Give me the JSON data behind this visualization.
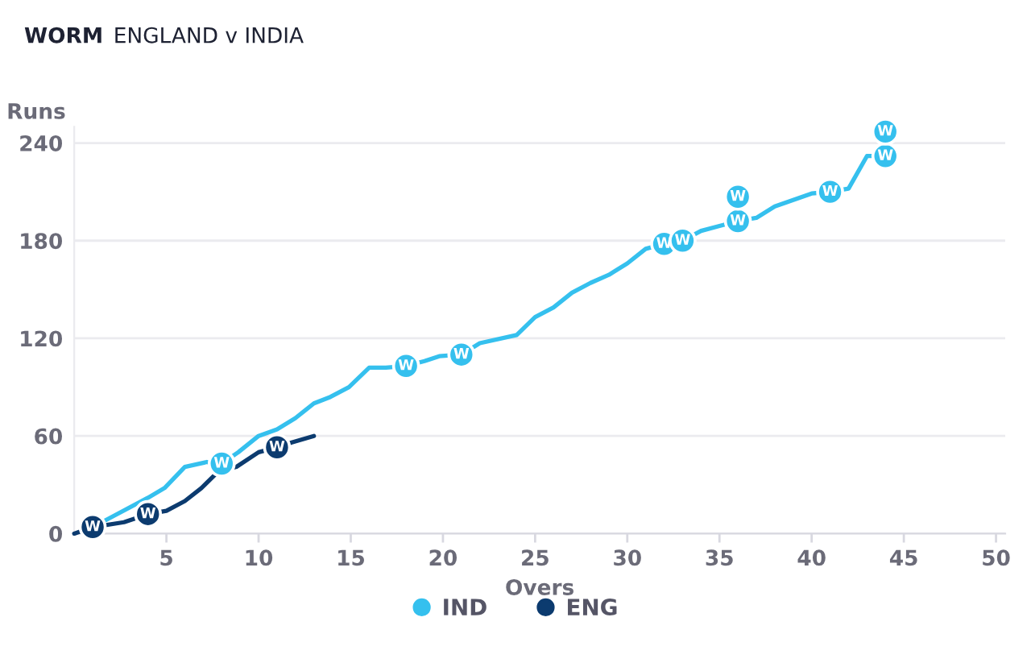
{
  "chart_data": {
    "type": "line",
    "title": "WORM",
    "subtitle": "ENGLAND v INDIA",
    "xlabel": "Overs",
    "ylabel": "Runs",
    "xlim": [
      0,
      50.5
    ],
    "xticks": [
      5,
      10,
      15,
      20,
      25,
      30,
      35,
      40,
      45,
      50
    ],
    "ylim": [
      0,
      250
    ],
    "yticks": [
      0,
      60,
      120,
      180,
      240
    ],
    "grid": "y",
    "legend": "bottom",
    "marker": "none",
    "series": [
      {
        "name": "IND",
        "color": "#35c0ee",
        "x": [
          1,
          1.5,
          4,
          4.9,
          6,
          7.2,
          8,
          8.9,
          10,
          11,
          12,
          13,
          13.9,
          14.9,
          16,
          16.9,
          18,
          19,
          19.8,
          21,
          22,
          24,
          25,
          26,
          27,
          28,
          29,
          30,
          31,
          32,
          33,
          34,
          35,
          36,
          37,
          38,
          39,
          40,
          41,
          42,
          43,
          44
        ],
        "values": [
          4,
          7,
          22,
          28,
          41,
          44,
          43,
          50,
          60,
          64,
          71,
          80,
          84,
          90,
          102,
          102,
          103,
          106,
          109,
          110,
          117,
          122,
          133,
          139,
          148,
          154,
          159,
          166,
          175,
          178,
          180,
          186,
          189,
          192,
          194,
          201,
          205,
          209,
          210,
          212,
          232,
          232
        ]
      },
      {
        "name": "ENG",
        "color": "#0c3b6f",
        "x": [
          0,
          1,
          2.7,
          4,
          5,
          6,
          6.9,
          7.8,
          8.8,
          10,
          11,
          11.8,
          13
        ],
        "values": [
          0,
          4,
          7,
          12,
          14,
          20,
          28,
          38,
          41,
          50,
          53,
          56,
          60
        ]
      },
      {
        "type": "scatter",
        "marker": "circle",
        "color": "#35c0ee",
        "x": [
          8,
          18,
          21,
          32,
          33,
          36,
          36,
          41,
          44,
          44
        ],
        "values": [
          43,
          103,
          110,
          178,
          180,
          192,
          207,
          210,
          232,
          247
        ],
        "value_labels": [
          "W",
          "W",
          "W",
          "W",
          "W",
          "W",
          "W",
          "W",
          "W",
          "W"
        ]
      },
      {
        "type": "scatter",
        "marker": "circle",
        "color": "#0c3b6f",
        "x": [
          1,
          4,
          11
        ],
        "values": [
          4,
          12,
          53
        ],
        "value_labels": [
          "W",
          "W",
          "W"
        ]
      }
    ]
  }
}
